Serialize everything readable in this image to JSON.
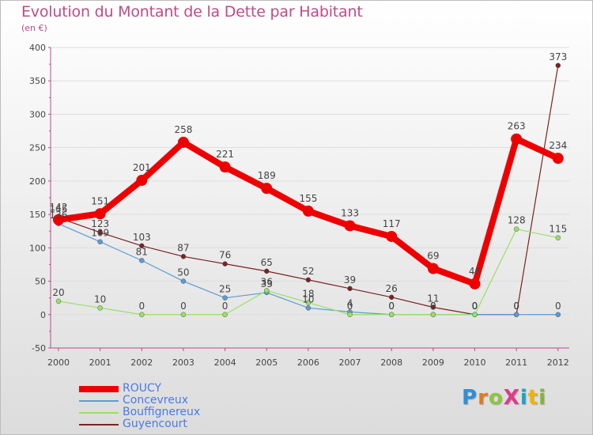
{
  "header": {
    "title": "Evolution du Montant de la Dette par Habitant",
    "unit": "(en €)"
  },
  "colors": {
    "title": "#c04a86",
    "axis": "#c04a86",
    "tick_text": "#444444",
    "grid": "#dddddd",
    "legend_text": "#4a7ae6"
  },
  "logo": {
    "text": "ProXiti",
    "letters": [
      "P",
      "r",
      "o",
      "X",
      "i",
      "t",
      "i"
    ],
    "colors": [
      "#2e8fd6",
      "#e07b1a",
      "#8cc63f",
      "#e03a8a",
      "#1aa3c8",
      "#f0b400",
      "#7fb83a"
    ]
  },
  "chart_data": {
    "type": "line",
    "x": [
      "2000",
      "2001",
      "2002",
      "2003",
      "2004",
      "2005",
      "2006",
      "2007",
      "2008",
      "2009",
      "2010",
      "2011",
      "2012"
    ],
    "ylim": [
      -50,
      400
    ],
    "yticks": [
      -50,
      0,
      50,
      100,
      150,
      200,
      250,
      300,
      350,
      400
    ],
    "grid": true,
    "series": [
      {
        "name": "ROUCY",
        "color": "#ee0000",
        "width": 8,
        "marker": 7,
        "values": [
          142,
          151,
          201,
          258,
          221,
          189,
          155,
          133,
          117,
          69,
          46,
          263,
          234
        ],
        "labels": [
          "142",
          "151",
          "201",
          "258",
          "221",
          "189",
          "155",
          "133",
          "117",
          "69",
          "46",
          "263",
          "234"
        ]
      },
      {
        "name": "Concevreux",
        "color": "#5b9bd5",
        "width": 1.2,
        "marker": 3,
        "values": [
          136,
          109,
          81,
          50,
          25,
          33,
          10,
          4,
          0,
          0,
          0,
          0,
          0
        ],
        "labels": [
          "136",
          "109",
          "81",
          "50",
          "25",
          "33",
          "10",
          "4",
          "0",
          "0",
          "0",
          "0",
          "0"
        ]
      },
      {
        "name": "Bouffignereux",
        "color": "#99e066",
        "width": 1.2,
        "marker": 3,
        "values": [
          20,
          10,
          0,
          0,
          0,
          36,
          18,
          0,
          0,
          0,
          0,
          128,
          115
        ],
        "labels": [
          "20",
          "10",
          "0",
          "0",
          "0",
          "36",
          "18",
          "0",
          "0",
          "0",
          "0",
          "128",
          "115"
        ]
      },
      {
        "name": "Guyencourt",
        "color": "#7a2222",
        "width": 1.2,
        "marker": 3,
        "values": [
          145,
          123,
          103,
          87,
          76,
          65,
          52,
          39,
          26,
          11,
          0,
          0,
          373
        ],
        "labels": [
          "145",
          "123",
          "103",
          "87",
          "76",
          "65",
          "52",
          "39",
          "26",
          "11",
          "0",
          "0",
          "373"
        ]
      }
    ]
  }
}
